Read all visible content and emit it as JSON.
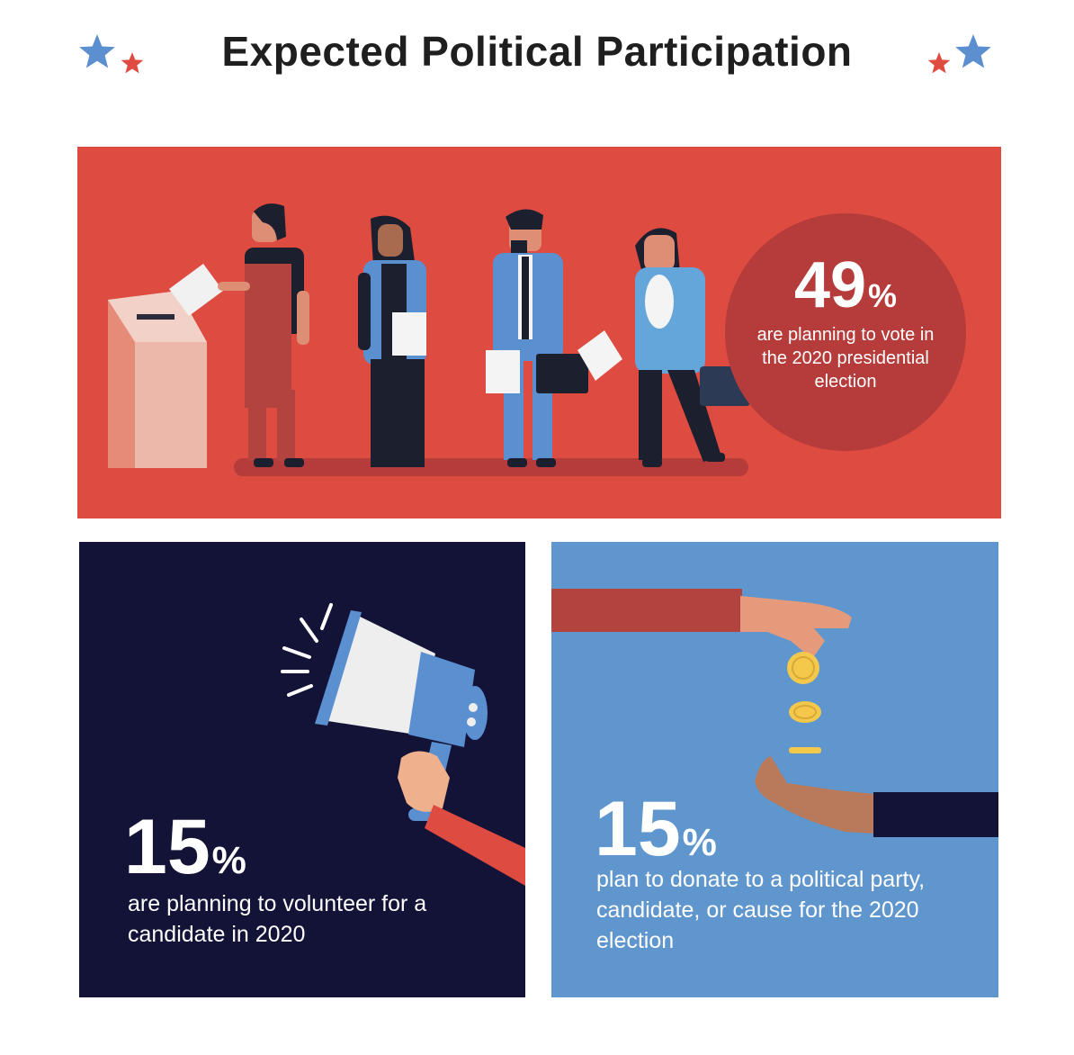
{
  "header": {
    "title": "Expected Political Participation"
  },
  "colors": {
    "red": "#de4b40",
    "dark_red": "#b53c3a",
    "navy": "#131337",
    "blue": "#5f96ce",
    "star_blue": "#5b8fd0",
    "star_red": "#de4b40"
  },
  "vote": {
    "value": "49",
    "unit": "%",
    "caption": "are planning to vote in the 2020 presidential election"
  },
  "volunteer": {
    "value": "15",
    "unit": "%",
    "caption": "are planning to volunteer for a candidate in 2020"
  },
  "donate": {
    "value": "15",
    "unit": "%",
    "caption": "plan to donate to a political party, candidate, or cause for the 2020 election"
  },
  "icons": [
    "star-icon",
    "ballot-box-icon",
    "voter-figure-icon",
    "megaphone-icon",
    "hand-icon",
    "coin-icon"
  ]
}
